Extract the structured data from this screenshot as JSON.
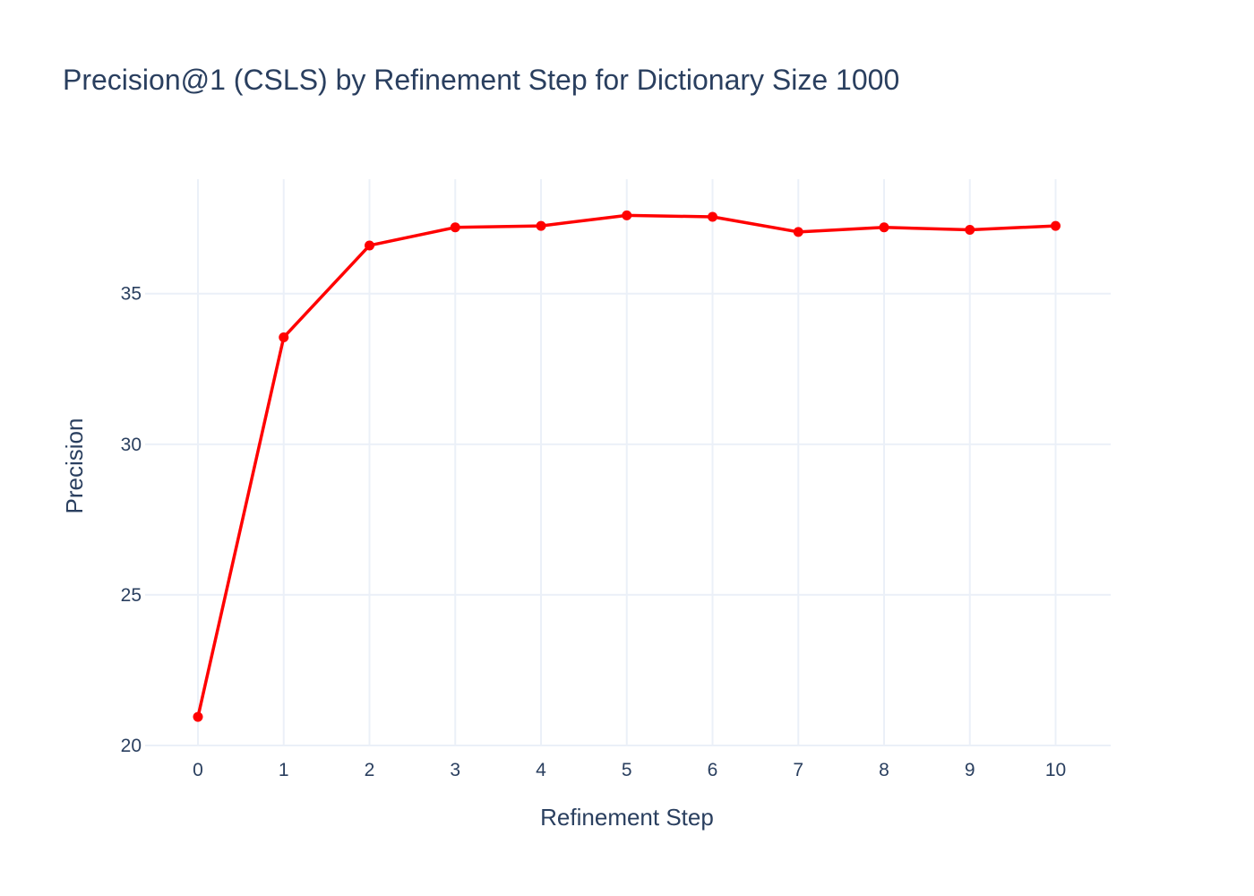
{
  "chart_data": {
    "type": "line",
    "title": "Precision@1 (CSLS) by Refinement Step for Dictionary Size 1000",
    "xlabel": "Refinement Step",
    "ylabel": "Precision",
    "x": [
      0,
      1,
      2,
      3,
      4,
      5,
      6,
      7,
      8,
      9,
      10
    ],
    "xticks": [
      "0",
      "1",
      "2",
      "3",
      "4",
      "5",
      "6",
      "7",
      "8",
      "9",
      "10"
    ],
    "yticks": [
      "20",
      "25",
      "30",
      "35"
    ],
    "ylim": [
      20,
      38.8
    ],
    "grid": true,
    "legend": "none",
    "series": [
      {
        "values": [
          20.95,
          33.55,
          36.6,
          37.2,
          37.25,
          37.6,
          37.55,
          37.05,
          37.2,
          37.12,
          37.25
        ],
        "color": "#ff0000"
      }
    ],
    "colors": {
      "text": "#2a3f5f",
      "grid": "#ebf0f8",
      "line": "#ff0000",
      "background": "#ffffff"
    }
  }
}
